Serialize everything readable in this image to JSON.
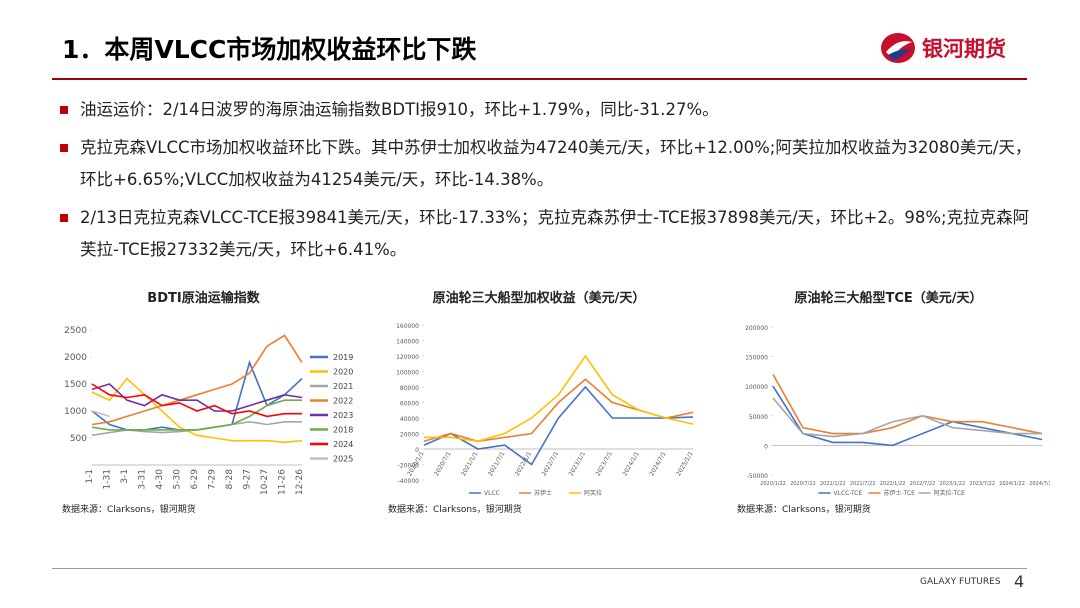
{
  "header": {
    "title": "1．本周VLCC市场加权收益环比下跌",
    "logo": "银河期货"
  },
  "bullets": [
    "油运运价：2/14日波罗的海原油运输指数BDTI报910，环比+1.79%，同比-31.27%。",
    "克拉克森VLCC市场加权收益环比下跌。其中苏伊士加权收益为47240美元/天，环比+12.00%;阿芙拉加权收益为32080美元/天，环比+6.65%;VLCC加权收益为41254美元/天，环比-14.38%。",
    "2/13日克拉克森VLCC-TCE报39841美元/天，环比-17.33%；克拉克森苏伊士-TCE报37898美元/天，环比+2。98%;克拉克森阿芙拉-TCE报27332美元/天，环比+6.41%。"
  ],
  "chart_data": [
    {
      "type": "line",
      "title": "BDTI原油运输指数",
      "source": "数据来源：Clarksons，银河期货",
      "legend": "right",
      "categories": [
        "1-1",
        "1-31",
        "3-1",
        "3-31",
        "4-30",
        "5-30",
        "6-29",
        "7-29",
        "8-28",
        "9-27",
        "10-27",
        "11-26",
        "12-26"
      ],
      "ylim": [
        0,
        2500
      ],
      "yticks": [
        500,
        1000,
        1500,
        2000,
        2500
      ],
      "series": [
        {
          "name": "2019",
          "color": "#4472c4",
          "values": [
            1000,
            750,
            650,
            650,
            700,
            650,
            650,
            700,
            750,
            1900,
            1100,
            1300,
            1600
          ]
        },
        {
          "name": "2020",
          "color": "#ffc000",
          "values": [
            1350,
            1200,
            1600,
            1300,
            1000,
            700,
            550,
            500,
            450,
            450,
            450,
            420,
            450
          ]
        },
        {
          "name": "2021",
          "color": "#a5a5a5",
          "values": [
            550,
            600,
            650,
            620,
            600,
            620,
            650,
            700,
            750,
            800,
            750,
            800,
            800
          ]
        },
        {
          "name": "2022",
          "color": "#ed7d31",
          "values": [
            750,
            800,
            900,
            1000,
            1100,
            1200,
            1300,
            1400,
            1500,
            1700,
            2200,
            2400,
            1900
          ]
        },
        {
          "name": "2023",
          "color": "#7030a0",
          "values": [
            1400,
            1500,
            1200,
            1100,
            1300,
            1200,
            1200,
            1000,
            1000,
            1100,
            1200,
            1300,
            1250
          ]
        },
        {
          "name": "2018",
          "color": "#70ad47",
          "values": [
            700,
            650,
            650,
            650,
            650,
            650,
            650,
            700,
            750,
            900,
            1100,
            1200,
            1200
          ]
        },
        {
          "name": "2024",
          "color": "#ff0000",
          "values": [
            1500,
            1300,
            1250,
            1300,
            1100,
            1150,
            1000,
            1100,
            950,
            1000,
            900,
            950,
            950
          ]
        },
        {
          "name": "2025",
          "color": "#bfbfbf",
          "values": [
            1000,
            900,
            null,
            null,
            null,
            null,
            null,
            null,
            null,
            null,
            null,
            null,
            null
          ]
        }
      ]
    },
    {
      "type": "line",
      "title": "原油轮三大船型加权收益（美元/天）",
      "source": "数据来源：Clarksons，银河期货",
      "legend": "bottom",
      "categories": [
        "2020/1/1",
        "2020/7/1",
        "2021/1/1",
        "2021/7/1",
        "2022/1/1",
        "2022/7/1",
        "2023/1/1",
        "2023/7/1",
        "2024/1/1",
        "2024/7/1",
        "2025/1/1"
      ],
      "ylim": [
        -40000,
        160000
      ],
      "yticks": [
        -40000,
        -20000,
        0,
        20000,
        40000,
        60000,
        80000,
        100000,
        120000,
        140000,
        160000
      ],
      "series": [
        {
          "name": "VLCC",
          "color": "#4472c4",
          "values": [
            5000,
            20000,
            0,
            5000,
            -20000,
            40000,
            80000,
            40000,
            40000,
            40000,
            41254
          ]
        },
        {
          "name": "苏伊士",
          "color": "#ed7d31",
          "values": [
            10000,
            20000,
            10000,
            15000,
            20000,
            60000,
            90000,
            60000,
            50000,
            40000,
            47240
          ]
        },
        {
          "name": "阿芙拉",
          "color": "#ffc000",
          "values": [
            15000,
            15000,
            10000,
            20000,
            40000,
            70000,
            120000,
            70000,
            50000,
            40000,
            32080
          ]
        }
      ]
    },
    {
      "type": "line",
      "title": "原油轮三大船型TCE（美元/天）",
      "source": "数据来源：Clarksons，银河期货",
      "legend": "bottom",
      "categories": [
        "2020/1/22",
        "2020/7/22",
        "2021/1/22",
        "2021/7/22",
        "2022/1/22",
        "2022/7/22",
        "2023/1/22",
        "2023/7/22",
        "2024/1/22",
        "2024/7/22"
      ],
      "ylim": [
        -50000,
        200000
      ],
      "yticks": [
        -50000,
        0,
        50000,
        100000,
        150000,
        200000
      ],
      "series": [
        {
          "name": "VLCC-TCE",
          "color": "#4472c4",
          "values": [
            100000,
            20000,
            5000,
            5000,
            0,
            20000,
            40000,
            30000,
            20000,
            10000
          ]
        },
        {
          "name": "苏伊士-TCE",
          "color": "#ed7d31",
          "values": [
            120000,
            30000,
            20000,
            20000,
            30000,
            50000,
            40000,
            40000,
            30000,
            20000
          ]
        },
        {
          "name": "阿芙拉-TCE",
          "color": "#a5a5a5",
          "values": [
            80000,
            20000,
            15000,
            20000,
            40000,
            50000,
            30000,
            25000,
            20000,
            20000
          ]
        }
      ]
    }
  ],
  "footer": {
    "brand": "GALAXY FUTURES",
    "page": "4"
  }
}
